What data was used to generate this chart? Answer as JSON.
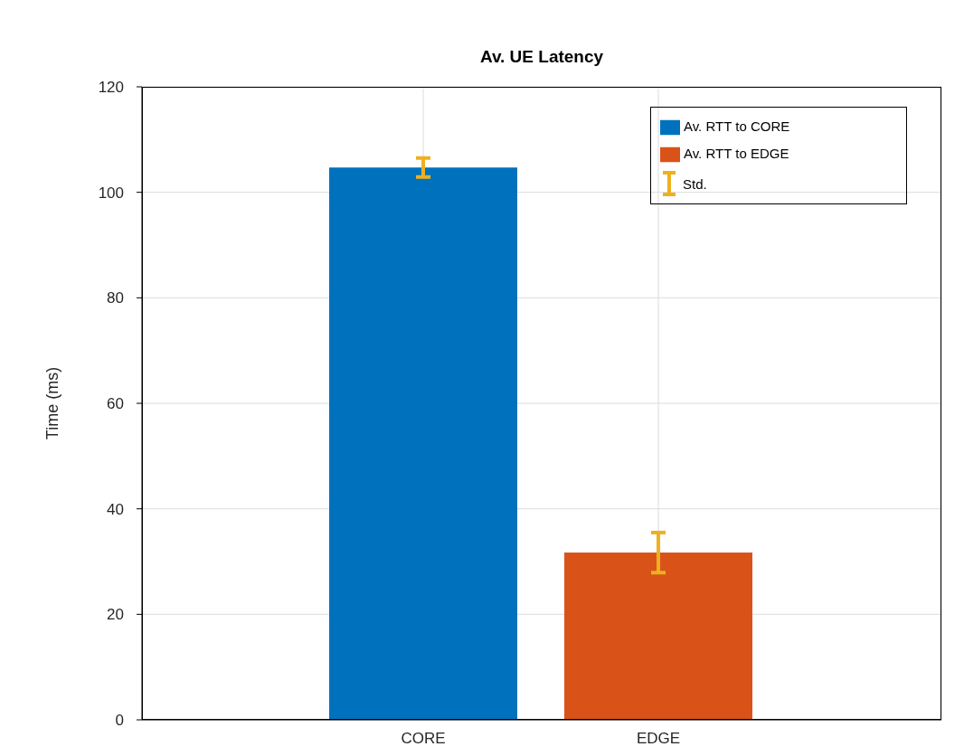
{
  "chart_data": {
    "type": "bar",
    "title": "Av. UE Latency",
    "ylabel": "Time (ms)",
    "categories": [
      "CORE",
      "EDGE"
    ],
    "series": [
      {
        "name": "Av. RTT to CORE",
        "color": "#0072bd",
        "values": [
          104.7,
          null
        ],
        "errors": [
          1.8,
          null
        ]
      },
      {
        "name": "Av. RTT to EDGE",
        "color": "#d95319",
        "values": [
          null,
          31.7
        ],
        "errors": [
          null,
          3.8
        ]
      }
    ],
    "annotations": [
      "Std."
    ],
    "ylim": [
      0,
      120
    ],
    "yticks": [
      0,
      20,
      40,
      60,
      80,
      100,
      120
    ],
    "grid": true,
    "legend": "top right"
  }
}
